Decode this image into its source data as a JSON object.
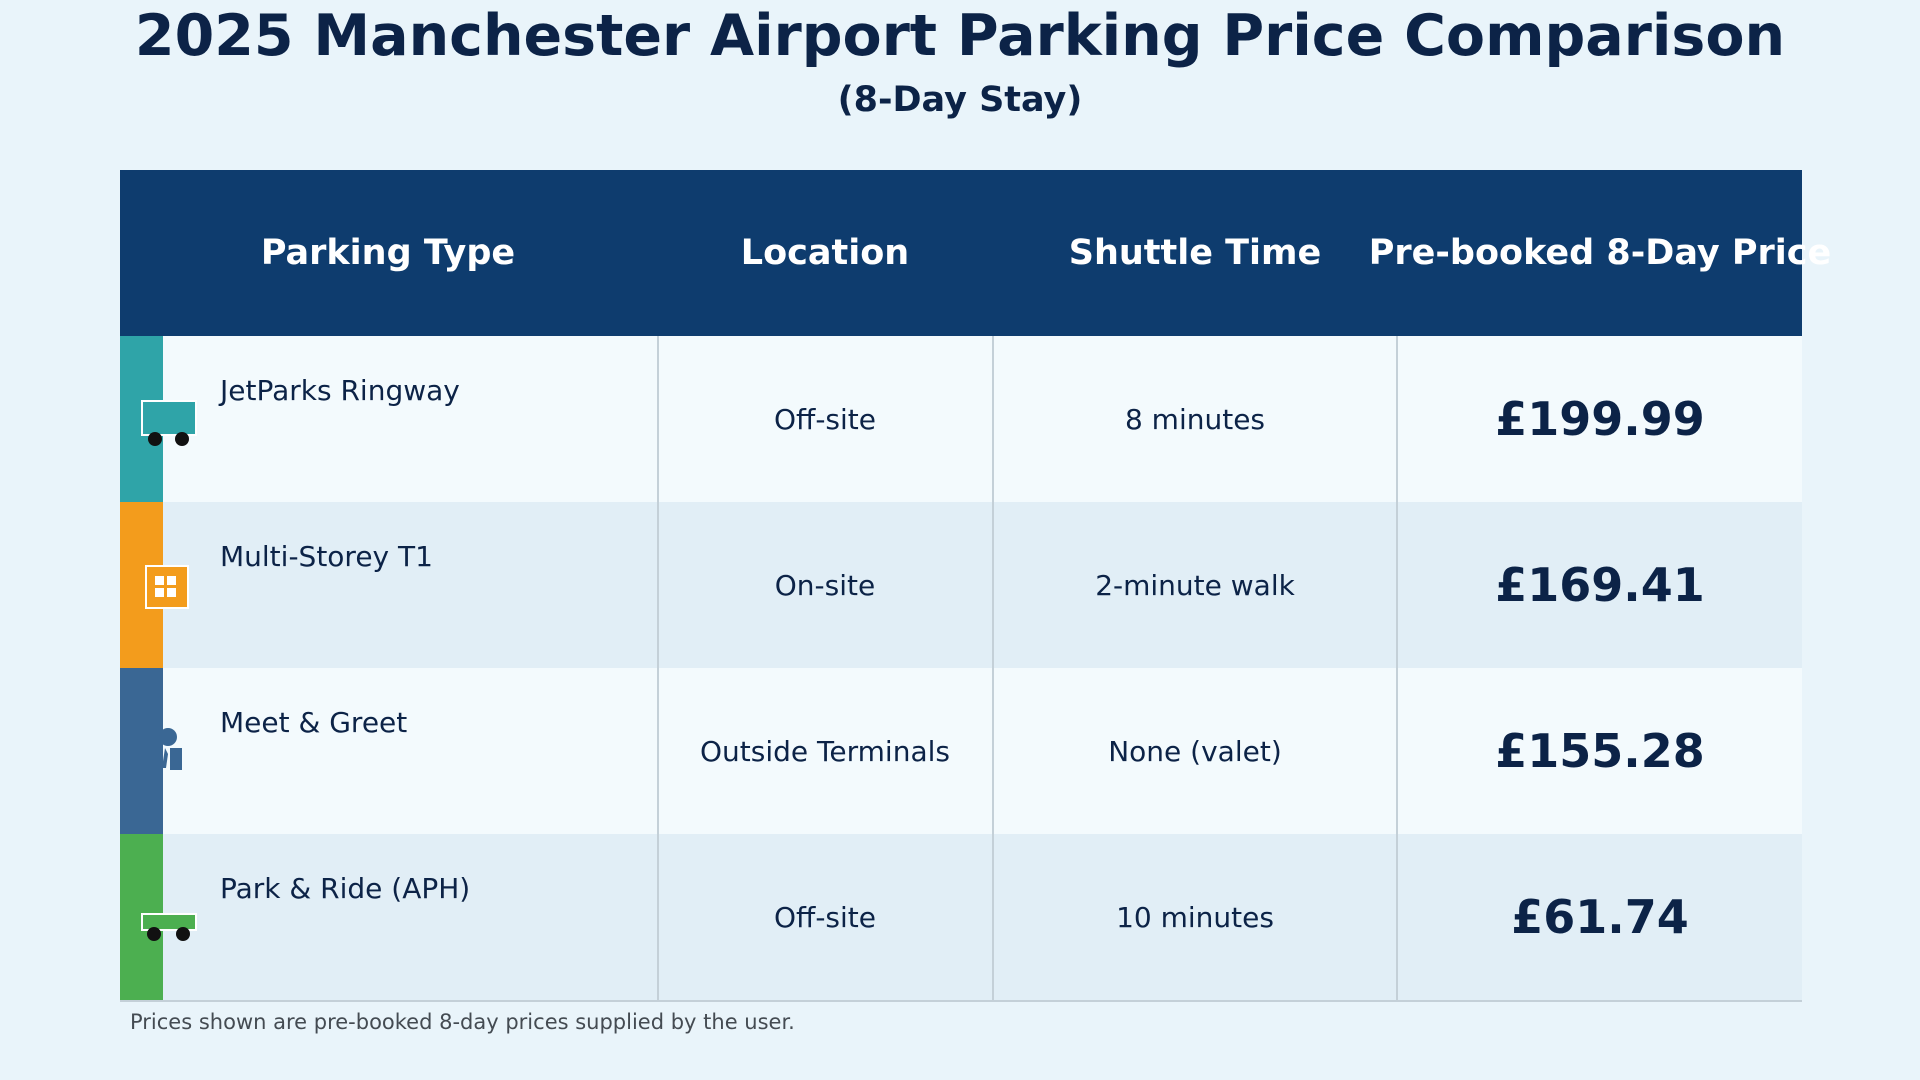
{
  "title": "2025 Manchester Airport Parking Price Comparison",
  "subtitle": "(8-Day Stay)",
  "chart_data": {
    "type": "table",
    "columns": [
      "Parking Type",
      "Location",
      "Shuttle Time",
      "Pre-booked 8-Day Price"
    ],
    "rows": [
      {
        "type": "JetParks Ringway",
        "location": "Off-site",
        "shuttle": "8 minutes",
        "price": "£199.99",
        "value": 199.99,
        "color": "#2fa4a8",
        "icon": "shuttle-bus-icon"
      },
      {
        "type": "Multi-Storey T1",
        "location": "On-site",
        "shuttle": "2-minute walk",
        "price": "£169.41",
        "value": 169.41,
        "color": "#f39c1c",
        "icon": "building-icon"
      },
      {
        "type": "Meet & Greet",
        "location": "Outside Terminals",
        "shuttle": "None (valet)",
        "price": "£155.28",
        "value": 155.28,
        "color": "#3a6794",
        "icon": "valet-person-icon"
      },
      {
        "type": "Park & Ride (APH)",
        "location": "Off-site",
        "shuttle": "10 minutes",
        "price": "£61.74",
        "value": 61.74,
        "color": "#4caf50",
        "icon": "shuttle-bus-icon"
      }
    ]
  },
  "footnote": "Prices shown are pre-booked 8-day prices supplied by the user.",
  "colors": {
    "header": "#0e3c6e",
    "text": "#0c2347",
    "background": "#e9f4fa"
  }
}
